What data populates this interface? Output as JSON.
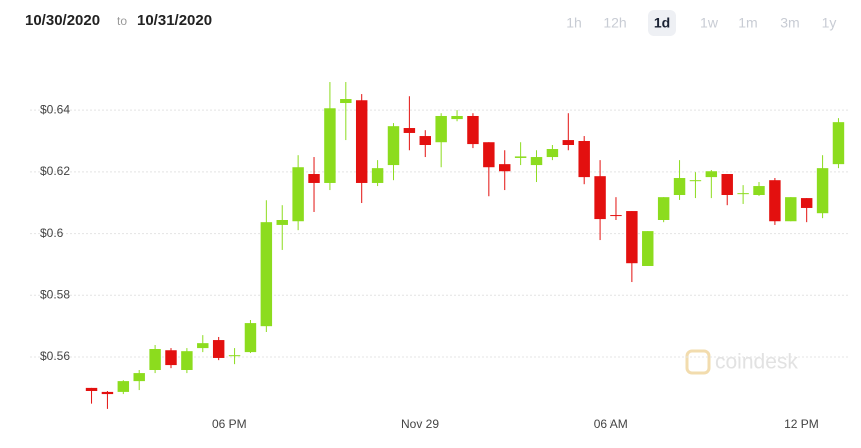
{
  "header": {
    "from": "10/30/2020",
    "to_word": "to",
    "to": "10/31/2020",
    "ranges": [
      "1h",
      "12h",
      "1d",
      "1w",
      "1m",
      "3m",
      "1y"
    ],
    "selected_range": "1d"
  },
  "watermark": "coindesk",
  "chart_data": {
    "type": "candlestick",
    "x": [
      0,
      1,
      2,
      3,
      4,
      5,
      6,
      7,
      8,
      9,
      10,
      11,
      12,
      13,
      14,
      15,
      16,
      17,
      18,
      19,
      20,
      21,
      22,
      23,
      24,
      25,
      26,
      27,
      28,
      29,
      30,
      31,
      32,
      33,
      34,
      35,
      36,
      37,
      38,
      39,
      40,
      41,
      42,
      43,
      44,
      45,
      46,
      47
    ],
    "xlim": [
      -0.6,
      47.6
    ],
    "xticks": [
      {
        "value": 8.67,
        "label": "06 PM"
      },
      {
        "value": 20.67,
        "label": "Nov 29"
      },
      {
        "value": 32.67,
        "label": "06 AM"
      },
      {
        "value": 44.67,
        "label": "12 PM"
      }
    ],
    "ylim": [
      0.5396,
      0.653
    ],
    "yticks": [
      {
        "value": 0.56,
        "label": "$0.56"
      },
      {
        "value": 0.58,
        "label": "$0.58"
      },
      {
        "value": 0.6,
        "label": "$0.6"
      },
      {
        "value": 0.62,
        "label": "$0.62"
      },
      {
        "value": 0.64,
        "label": "$0.64"
      }
    ],
    "grid": true,
    "up_color": "#8cdc1e",
    "down_color": "#e3100f",
    "open": [
      0.55,
      0.5487,
      0.5487,
      0.5522,
      0.5558,
      0.5622,
      0.5558,
      0.5629,
      0.5655,
      0.5603,
      0.5616,
      0.57,
      0.6028,
      0.604,
      0.6193,
      0.6164,
      0.6423,
      0.6432,
      0.6164,
      0.6222,
      0.6342,
      0.6316,
      0.6296,
      0.6371,
      0.6381,
      0.6296,
      0.6225,
      0.6245,
      0.6222,
      0.6248,
      0.6303,
      0.63,
      0.6186,
      0.606,
      0.6073,
      0.5895,
      0.6044,
      0.6125,
      0.617,
      0.6183,
      0.6193,
      0.6128,
      0.6125,
      0.6173,
      0.604,
      0.6115,
      0.6066,
      0.6225
    ],
    "high": [
      0.55,
      0.549,
      0.5525,
      0.5558,
      0.5639,
      0.5629,
      0.5629,
      0.5671,
      0.5665,
      0.5629,
      0.572,
      0.6108,
      0.6092,
      0.6254,
      0.6248,
      0.6491,
      0.6491,
      0.6452,
      0.6238,
      0.6358,
      0.6445,
      0.6335,
      0.639,
      0.64,
      0.639,
      0.6296,
      0.627,
      0.6296,
      0.627,
      0.6287,
      0.639,
      0.6316,
      0.6238,
      0.6118,
      0.6073,
      0.6008,
      0.6118,
      0.6238,
      0.6199,
      0.6206,
      0.6193,
      0.6157,
      0.6167,
      0.618,
      0.6118,
      0.6115,
      0.6254,
      0.6374
    ],
    "low": [
      0.5449,
      0.5432,
      0.548,
      0.5493,
      0.5548,
      0.5564,
      0.5548,
      0.5616,
      0.559,
      0.5577,
      0.5613,
      0.5681,
      0.5947,
      0.6011,
      0.607,
      0.6141,
      0.6303,
      0.6099,
      0.6154,
      0.6173,
      0.627,
      0.6248,
      0.6215,
      0.6364,
      0.6277,
      0.6121,
      0.6141,
      0.6222,
      0.6167,
      0.6238,
      0.627,
      0.616,
      0.5979,
      0.6044,
      0.5843,
      0.5895,
      0.6037,
      0.6109,
      0.6115,
      0.6115,
      0.6092,
      0.6096,
      0.6122,
      0.6028,
      0.604,
      0.6037,
      0.605,
      0.6212
    ],
    "close": [
      0.549,
      0.548,
      0.5522,
      0.5548,
      0.5626,
      0.5574,
      0.5619,
      0.5645,
      0.5597,
      0.5606,
      0.571,
      0.6037,
      0.6044,
      0.6215,
      0.6164,
      0.6406,
      0.6436,
      0.6164,
      0.6212,
      0.6348,
      0.6326,
      0.6287,
      0.6381,
      0.6381,
      0.629,
      0.6215,
      0.6202,
      0.625,
      0.6248,
      0.6274,
      0.6287,
      0.6183,
      0.6047,
      0.6057,
      0.5904,
      0.6008,
      0.6118,
      0.618,
      0.6173,
      0.6202,
      0.6125,
      0.6131,
      0.6154,
      0.604,
      0.6118,
      0.6083,
      0.6212,
      0.6361
    ]
  }
}
